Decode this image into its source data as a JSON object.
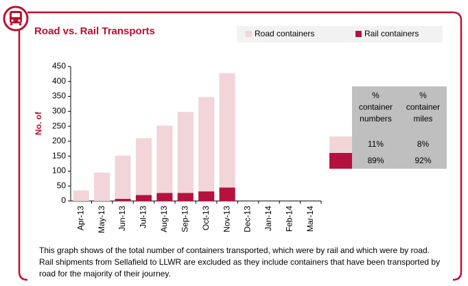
{
  "chart_data": {
    "type": "bar",
    "stacked": true,
    "title": "Road vs. Rail Transports",
    "y_label": "No. of",
    "categories": [
      "Apr-13",
      "May-13",
      "Jun-13",
      "Jul-13",
      "Aug-13",
      "Sep-13",
      "Oct-13",
      "Nov-13",
      "Dec-13",
      "Jan-14",
      "Feb-14",
      "Mar-14"
    ],
    "series": [
      {
        "name": "Rail containers",
        "color": "#b5123e",
        "values": [
          0,
          0,
          7,
          20,
          27,
          27,
          32,
          45,
          null,
          null,
          null,
          null
        ]
      },
      {
        "name": "Road containers",
        "color": "#f2d5d8",
        "values": [
          35,
          95,
          145,
          190,
          225,
          271,
          316,
          383,
          null,
          null,
          null,
          null
        ]
      }
    ],
    "legend_order": [
      1,
      0
    ],
    "ylim": [
      0,
      450
    ],
    "yticks": [
      0,
      50,
      100,
      150,
      200,
      250,
      300,
      350,
      400,
      450
    ],
    "grid": false
  },
  "table": {
    "columns": [
      "%\ncontainer\nnumbers",
      "%\ncontainer\nmiles"
    ],
    "rows": [
      {
        "series": 1,
        "cells": [
          "11%",
          "8%"
        ]
      },
      {
        "series": 0,
        "cells": [
          "89%",
          "92%"
        ]
      }
    ]
  },
  "note": "This graph shows of the total number of containers transported, which were by rail and which were by road. Rail shipments from Sellafield to LLWR are excluded as they include containers that have been transported by road for the majority of their journey."
}
